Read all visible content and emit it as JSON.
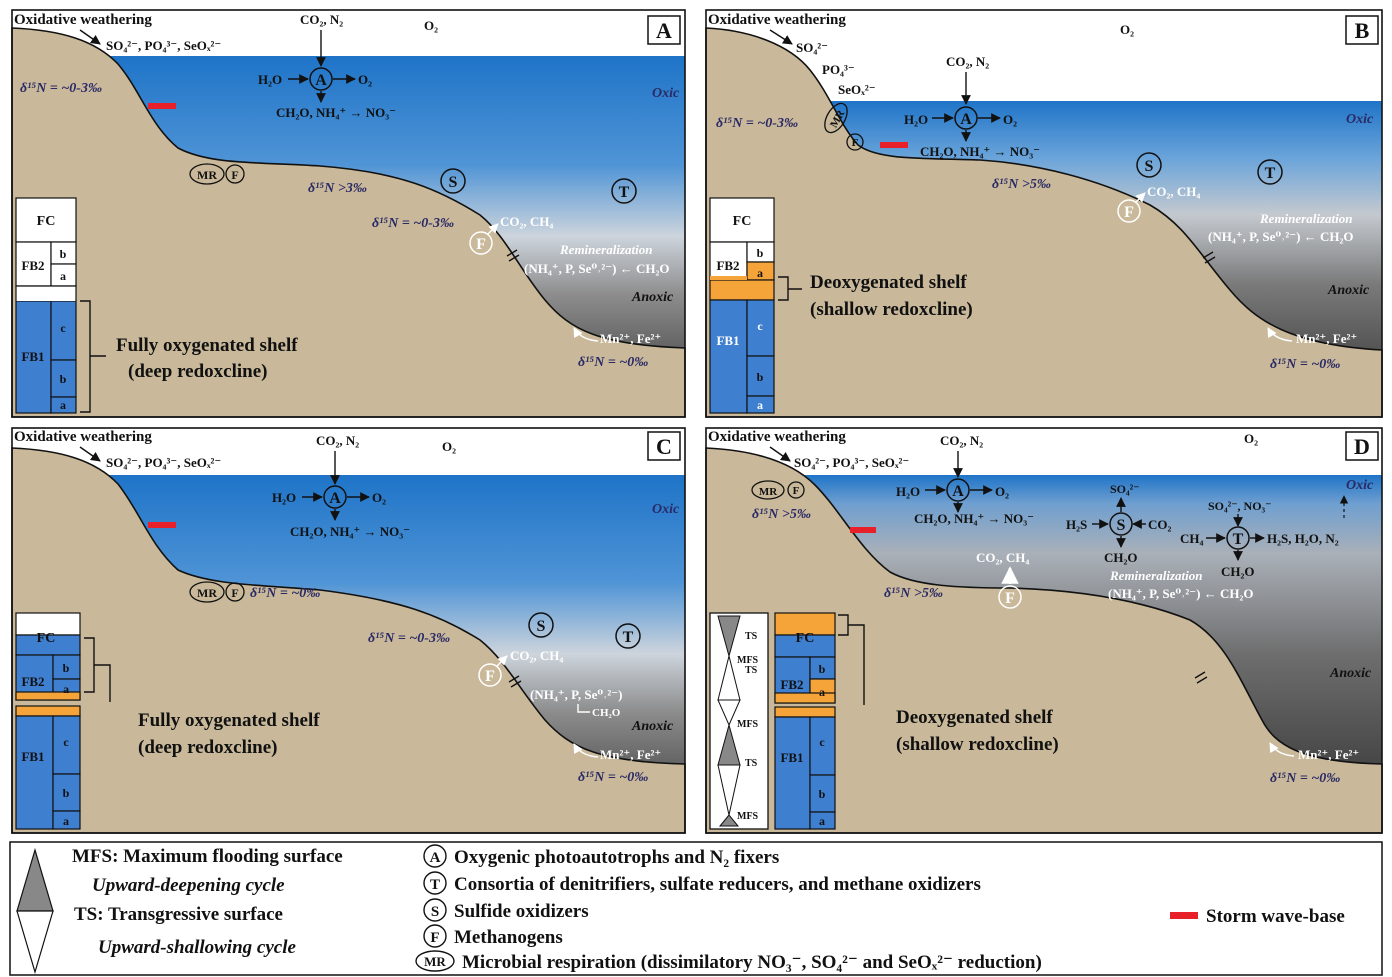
{
  "panels": {
    "a": {
      "letter": "A",
      "weathering": "Oxidative weathering",
      "nutrients": "SO₄²⁻, PO₄³⁻, SeOₓ²⁻",
      "gases": "CO₂, N₂",
      "o2": "O₂",
      "zone_oxic": "Oxic",
      "zone_anoxic": "Anoxic",
      "a_left": "H₂O",
      "a_right": "O₂",
      "a_bottom": "CH₂O, NH₄⁺ → NO₃⁻",
      "d15n_1": "δ¹⁵N = ~0-3‰",
      "d15n_2": "δ¹⁵N >3‰",
      "d15n_3": "δ¹⁵N = ~0-3‰",
      "d15n_4": "δ¹⁵N = ~0‰",
      "f_products": "CO₂, CH₄",
      "remin_label": "Remineralization",
      "remin_eq": "(NH₄⁺, P, Se⁰˒²⁻) ← CH₂O",
      "metals": "Mn²⁺, Fe²⁺",
      "col_fc": "FC",
      "col_fb2": "FB2",
      "col_fb1": "FB1",
      "sub_a": "a",
      "sub_b": "b",
      "sub_c": "c",
      "shelf_title": "Fully oxygenated shelf",
      "shelf_sub": "(deep redoxcline)"
    },
    "b": {
      "letter": "B",
      "weathering": "Oxidative weathering",
      "n1": "SO₄²⁻",
      "n2": "PO₄³⁻",
      "n3": "SeOₓ²⁻",
      "gases": "CO₂, N₂",
      "o2": "O₂",
      "zone_oxic": "Oxic",
      "zone_anoxic": "Anoxic",
      "a_left": "H₂O",
      "a_right": "O₂",
      "a_bottom": "CH₂O, NH₄⁺ → NO₃⁻",
      "d15n_1": "δ¹⁵N = ~0-3‰",
      "d15n_2": "δ¹⁵N >5‰",
      "d15n_4": "δ¹⁵N = ~0‰",
      "f_products": "CO₂, CH₄",
      "remin_label": "Remineralization",
      "remin_eq": "(NH₄⁺, P, Se⁰˒²⁻) ← CH₂O",
      "metals": "Mn²⁺, Fe²⁺",
      "col_fc": "FC",
      "col_fb2": "FB2",
      "col_fb1": "FB1",
      "sub_a": "a",
      "sub_b": "b",
      "sub_c": "c",
      "shelf_title": "Deoxygenated shelf",
      "shelf_sub": "(shallow redoxcline)"
    },
    "c": {
      "letter": "C",
      "weathering": "Oxidative weathering",
      "nutrients": "SO₄²⁻, PO₄³⁻, SeOₓ²⁻",
      "gases": "CO₂, N₂",
      "o2": "O₂",
      "zone_oxic": "Oxic",
      "zone_anoxic": "Anoxic",
      "a_left": "H₂O",
      "a_right": "O₂",
      "a_bottom": "CH₂O, NH₄⁺ → NO₃⁻",
      "d15n_2": "δ¹⁵N = ~0‰",
      "d15n_3": "δ¹⁵N = ~0-3‰",
      "d15n_4": "δ¹⁵N = ~0‰",
      "f_products": "CO₂, CH₄",
      "remin_eq": "(NH₄⁺, P, Se⁰˒²⁻)",
      "remin_ch2o": "CH₂O",
      "metals": "Mn²⁺, Fe²⁺",
      "col_fc": "FC",
      "col_fb2": "FB2",
      "col_fb1": "FB1",
      "sub_a": "a",
      "sub_b": "b",
      "sub_c": "c",
      "shelf_title": "Fully oxygenated shelf",
      "shelf_sub": "(deep redoxcline)"
    },
    "d": {
      "letter": "D",
      "weathering": "Oxidative weathering",
      "nutrients": "SO₄²⁻, PO₄³⁻, SeOₓ²⁻",
      "gases": "CO₂, N₂",
      "o2": "O₂",
      "zone_oxic": "Oxic",
      "zone_anoxic": "Anoxic",
      "a_left": "H₂O",
      "a_right": "O₂",
      "a_bottom": "CH₂O, NH₄⁺ → NO₃⁻",
      "s_top": "SO₄²⁻",
      "s_left": "H₂S",
      "s_right": "CO₂",
      "s_bottom": "CH₂O",
      "t_top": "SO₄²⁻, NO₃⁻",
      "t_left": "CH₄",
      "t_right": "H₂S, H₂O, N₂",
      "t_bottom": "CH₂O",
      "d15n_1": "δ¹⁵N >5‰",
      "d15n_2": "δ¹⁵N >5‰",
      "d15n_4": "δ¹⁵N = ~0‰",
      "f_products": "CO₂, CH₄",
      "remin_label": "Remineralization",
      "remin_eq": "(NH₄⁺, P, Se⁰˒²⁻) ← CH₂O",
      "metals": "Mn²⁺, Fe²⁺",
      "seq_ts1": "TS",
      "seq_mfs1": "MFS",
      "seq_ts2": "TS",
      "seq_mfs2": "MFS",
      "seq_ts3": "TS",
      "seq_mfs3": "MFS",
      "col_fc": "FC",
      "col_fb2": "FB2",
      "col_fb1": "FB1",
      "sub_a": "a",
      "sub_b": "b",
      "sub_c": "c",
      "shelf_title": "Deoxygenated shelf",
      "shelf_sub": "(shallow redoxcline)"
    }
  },
  "symbols": {
    "a": "A",
    "t": "T",
    "s": "S",
    "f": "F",
    "mr": "MR"
  },
  "legend": {
    "mfs": "MFS: Maximum flooding surface",
    "deepening": "Upward-deepening cycle",
    "ts": "TS: Transgressive surface",
    "shallowing": "Upward-shallowing cycle",
    "a_desc": "Oxygenic photoautotrophs and N₂ fixers",
    "t_desc": "Consortia of denitrifiers, sulfate reducers, and methane oxidizers",
    "s_desc": "Sulfide oxidizers",
    "f_desc": "Methanogens",
    "mr_desc": "Microbial respiration (dissimilatory NO₃⁻, SO₄²⁻ and SeOₓ²⁻ reduction)",
    "storm": "Storm wave-base"
  },
  "colors": {
    "oxic_water": "#1f74c8",
    "anoxic_water": "#333333",
    "sediment": "#c9b99a",
    "column_blue": "#3f7fcf",
    "column_orange": "#f5a43a",
    "storm_wave_base": "#e8202a",
    "delta_text": "#2a2a66"
  }
}
